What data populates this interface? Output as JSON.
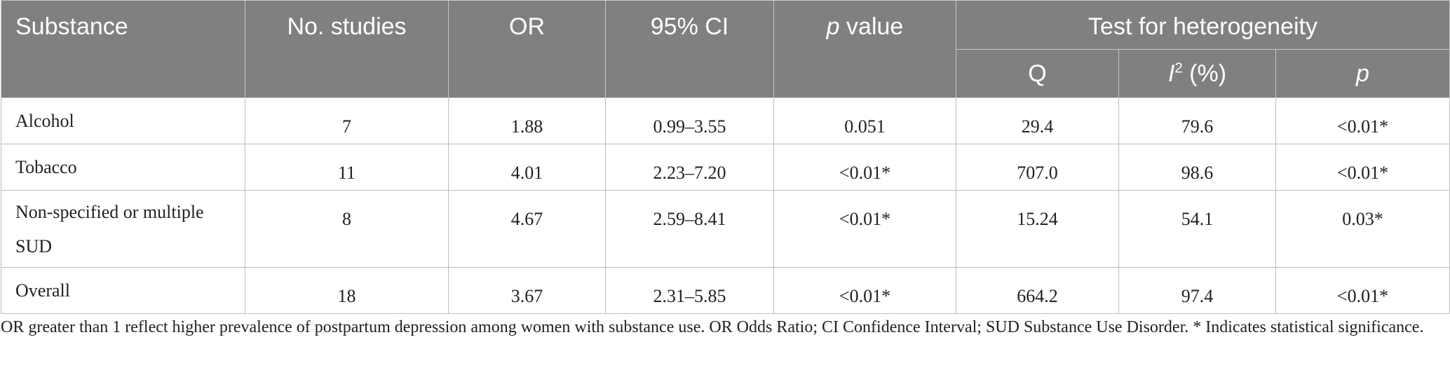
{
  "table": {
    "header": {
      "substance": "Substance",
      "no_studies": "No. studies",
      "or": "OR",
      "ci": "95% CI",
      "p_value_italic": "p",
      "p_value_rest": " value",
      "heterogeneity": "Test for heterogeneity",
      "q": "Q",
      "i2_letter": "I",
      "i2_sup": "2",
      "i2_rest": " (%)",
      "p_het": "p"
    },
    "rows": [
      {
        "substance": "Alcohol",
        "studies": "7",
        "or": "1.88",
        "ci": "0.99–3.55",
        "p": "0.051",
        "q": "29.4",
        "i2": "79.6",
        "p_het": "<0.01*"
      },
      {
        "substance": "Tobacco",
        "studies": "11",
        "or": "4.01",
        "ci": "2.23–7.20",
        "p": "<0.01*",
        "q": "707.0",
        "i2": "98.6",
        "p_het": "<0.01*"
      },
      {
        "substance": "Non-specified or multiple SUD",
        "studies": "8",
        "or": "4.67",
        "ci": "2.59–8.41",
        "p": "<0.01*",
        "q": "15.24",
        "i2": "54.1",
        "p_het": "0.03*"
      },
      {
        "substance": "Overall",
        "studies": "18",
        "or": "3.67",
        "ci": "2.31–5.85",
        "p": "<0.01*",
        "q": "664.2",
        "i2": "97.4",
        "p_het": "<0.01*"
      }
    ]
  },
  "footnote": "OR greater than 1 reflect higher prevalence of postpartum depression among women with substance use. OR Odds Ratio; CI Confidence Interval; SUD Substance Use Disorder. * Indicates statistical significance."
}
